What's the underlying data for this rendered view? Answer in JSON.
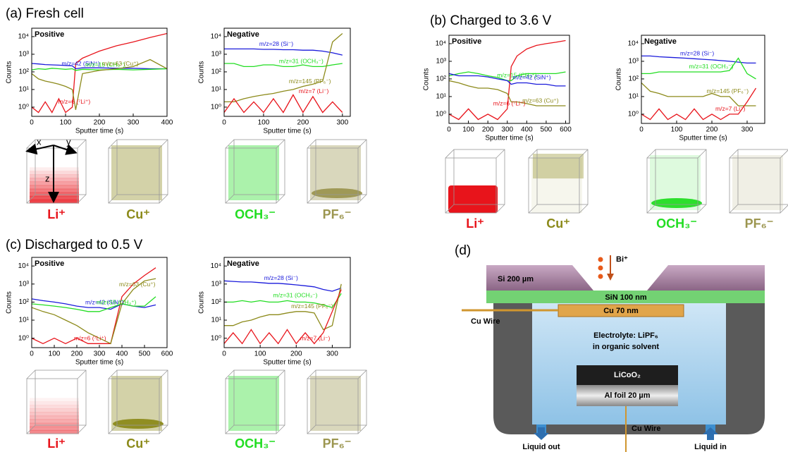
{
  "chart_data": [
    {
      "type": "line",
      "title": "Positive",
      "xlabel": "Sputter time (s)",
      "ylabel": "Counts",
      "log_y": true,
      "x": [
        0,
        20,
        40,
        60,
        80,
        100,
        120,
        130,
        150,
        200,
        250,
        300,
        350,
        400
      ],
      "xlim": [
        0,
        400
      ],
      "xticks": [
        0,
        100,
        200,
        300,
        400
      ],
      "ylim": [
        0.3,
        30000
      ],
      "yticks": [
        {
          "value": 1,
          "label": "10⁰"
        },
        {
          "value": 10,
          "label": "10¹"
        },
        {
          "value": 100,
          "label": "10²"
        },
        {
          "value": 1000,
          "label": "10³"
        },
        {
          "value": 10000,
          "label": "10⁴"
        }
      ],
      "series": [
        {
          "name": "m/z=6 (⁷Li⁺)",
          "color": "#e8141b",
          "values": [
            1,
            0.5,
            2,
            0.5,
            3,
            0.5,
            1,
            300,
            600,
            1500,
            3000,
            5000,
            9000,
            15000
          ]
        },
        {
          "name": "m/z=42 (SiN⁺)",
          "color": "#1a1adb",
          "values": [
            300,
            280,
            260,
            250,
            240,
            230,
            220,
            150,
            170,
            170,
            160,
            160,
            150,
            150
          ]
        },
        {
          "name": "m/z=15 (CH₃⁺)",
          "color": "#22dd22",
          "values": [
            130,
            150,
            140,
            160,
            150,
            140,
            150,
            120,
            140,
            130,
            140,
            130,
            140,
            150
          ]
        },
        {
          "name": "m/z=63 (Cu⁺)",
          "color": "#8c8a1a",
          "values": [
            80,
            40,
            30,
            25,
            20,
            15,
            10,
            0.7,
            80,
            120,
            150,
            200,
            500,
            150
          ]
        }
      ]
    },
    {
      "type": "line",
      "title": "Negative",
      "xlabel": "Sputter time (s)",
      "ylabel": "Counts",
      "log_y": true,
      "x": [
        0,
        25,
        50,
        75,
        100,
        125,
        150,
        175,
        200,
        225,
        250,
        275,
        300
      ],
      "xlim": [
        0,
        320
      ],
      "xticks": [
        0,
        100,
        200,
        300
      ],
      "ylim": [
        0.3,
        30000
      ],
      "yticks": [
        {
          "value": 1,
          "label": "10⁰"
        },
        {
          "value": 10,
          "label": "10¹"
        },
        {
          "value": 100,
          "label": "10²"
        },
        {
          "value": 1000,
          "label": "10³"
        },
        {
          "value": 10000,
          "label": "10⁴"
        }
      ],
      "series": [
        {
          "name": "m/z=28 (Si⁻)",
          "color": "#1a1adb",
          "values": [
            2000,
            2000,
            2000,
            2000,
            1900,
            1900,
            1800,
            1800,
            1700,
            1700,
            1500,
            1200,
            900
          ]
        },
        {
          "name": "m/z=31 (OCH₃⁻)",
          "color": "#22dd22",
          "values": [
            300,
            300,
            200,
            200,
            250,
            250,
            200,
            200,
            250,
            200,
            200,
            250,
            300
          ]
        },
        {
          "name": "m/z=145 (PF₆⁻)",
          "color": "#8c8a1a",
          "values": [
            2,
            2,
            3,
            4,
            5,
            6,
            8,
            10,
            15,
            20,
            30,
            5000,
            15000
          ]
        },
        {
          "name": "m/z=7 (Li⁻)",
          "color": "#e8141b",
          "values": [
            0.5,
            3,
            0.5,
            2,
            0.5,
            3,
            0.5,
            5,
            0.5,
            4,
            0.5,
            2,
            0.5
          ]
        }
      ]
    },
    {
      "type": "line",
      "title": "Positive",
      "xlabel": "Sputter time (s)",
      "ylabel": "Counts",
      "log_y": true,
      "x": [
        0,
        50,
        100,
        150,
        200,
        250,
        300,
        320,
        350,
        400,
        450,
        500,
        550,
        600
      ],
      "xlim": [
        0,
        620
      ],
      "xticks": [
        0,
        100,
        200,
        300,
        400,
        500,
        600
      ],
      "ylim": [
        0.3,
        30000
      ],
      "yticks": [
        {
          "value": 1,
          "label": "10⁰"
        },
        {
          "value": 10,
          "label": "10¹"
        },
        {
          "value": 100,
          "label": "10²"
        },
        {
          "value": 1000,
          "label": "10³"
        },
        {
          "value": 10000,
          "label": "10⁴"
        }
      ],
      "series": [
        {
          "name": "m/z=6 (⁷Li⁺)",
          "color": "#e8141b",
          "values": [
            1,
            0.5,
            2,
            0.5,
            1,
            0.5,
            2,
            500,
            2000,
            5000,
            8000,
            10000,
            12000,
            15000
          ]
        },
        {
          "name": "m/z=15 (CH₃⁺)",
          "color": "#22dd22",
          "values": [
            150,
            200,
            250,
            200,
            150,
            120,
            80,
            80,
            150,
            200,
            200,
            200,
            200,
            250
          ]
        },
        {
          "name": "m/z=42 (SiN⁺)",
          "color": "#1a1adb",
          "values": [
            200,
            150,
            150,
            150,
            130,
            100,
            80,
            50,
            60,
            60,
            50,
            50,
            40,
            40
          ]
        },
        {
          "name": "m/z=63 (Cu⁺)",
          "color": "#8c8a1a",
          "values": [
            80,
            60,
            40,
            30,
            30,
            25,
            15,
            5,
            5,
            4,
            3,
            3,
            3,
            3
          ]
        }
      ]
    },
    {
      "type": "line",
      "title": "Negative",
      "xlabel": "Sputter time (s)",
      "ylabel": "Counts",
      "log_y": true,
      "x": [
        0,
        25,
        50,
        75,
        100,
        125,
        150,
        175,
        200,
        225,
        250,
        275,
        300,
        325
      ],
      "xlim": [
        0,
        350
      ],
      "xticks": [
        0,
        100,
        200,
        300
      ],
      "ylim": [
        0.3,
        30000
      ],
      "yticks": [
        {
          "value": 1,
          "label": "10⁰"
        },
        {
          "value": 10,
          "label": "10¹"
        },
        {
          "value": 100,
          "label": "10²"
        },
        {
          "value": 1000,
          "label": "10³"
        },
        {
          "value": 10000,
          "label": "10⁴"
        }
      ],
      "series": [
        {
          "name": "m/z=28 (Si⁻)",
          "color": "#1a1adb",
          "values": [
            2000,
            2000,
            1800,
            1700,
            1600,
            1500,
            1400,
            1300,
            1200,
            1100,
            1000,
            900,
            800,
            800
          ]
        },
        {
          "name": "m/z=31 (OCH₃⁻)",
          "color": "#22dd22",
          "values": [
            200,
            200,
            250,
            250,
            250,
            250,
            250,
            250,
            250,
            250,
            300,
            1500,
            200,
            100
          ]
        },
        {
          "name": "m/z=145 (PF₆⁻)",
          "color": "#8c8a1a",
          "values": [
            60,
            20,
            15,
            10,
            10,
            10,
            10,
            10,
            15,
            10,
            10,
            3,
            3,
            3
          ]
        },
        {
          "name": "m/z=7 (Li⁻)",
          "color": "#e8141b",
          "values": [
            1,
            0.5,
            2,
            0.5,
            1,
            0.5,
            2,
            0.5,
            1,
            0.5,
            1,
            1,
            5,
            30
          ]
        }
      ]
    },
    {
      "type": "line",
      "title": "Positive",
      "xlabel": "Sputter time (s)",
      "ylabel": "Counts",
      "log_y": true,
      "x": [
        0,
        50,
        100,
        150,
        200,
        250,
        300,
        350,
        400,
        450,
        500,
        550
      ],
      "xlim": [
        0,
        600
      ],
      "xticks": [
        0,
        100,
        200,
        300,
        400,
        500,
        600
      ],
      "ylim": [
        0.3,
        30000
      ],
      "yticks": [
        {
          "value": 1,
          "label": "10⁰"
        },
        {
          "value": 10,
          "label": "10¹"
        },
        {
          "value": 100,
          "label": "10²"
        },
        {
          "value": 1000,
          "label": "10³"
        },
        {
          "value": 10000,
          "label": "10⁴"
        }
      ],
      "series": [
        {
          "name": "m/z=6 (⁷Li⁺)",
          "color": "#e8141b",
          "values": [
            1,
            0.5,
            1,
            0.5,
            1,
            0.5,
            0.5,
            0.5,
            200,
            1000,
            3000,
            8000
          ]
        },
        {
          "name": "m/z=42 (SiN⁺)",
          "color": "#1a1adb",
          "values": [
            150,
            120,
            100,
            80,
            60,
            50,
            50,
            40,
            80,
            60,
            50,
            70
          ]
        },
        {
          "name": "m/z=15 (CH₃⁺)",
          "color": "#22dd22",
          "values": [
            80,
            70,
            60,
            50,
            40,
            30,
            30,
            50,
            80,
            60,
            60,
            200
          ]
        },
        {
          "name": "m/z=63 (Cu⁺)",
          "color": "#8c8a1a",
          "values": [
            50,
            30,
            20,
            10,
            5,
            2,
            1,
            0.5,
            80,
            500,
            1500,
            2000
          ]
        }
      ]
    },
    {
      "type": "line",
      "title": "Negative",
      "xlabel": "Sputter time (s)",
      "ylabel": "Counts",
      "log_y": true,
      "x": [
        0,
        25,
        50,
        75,
        100,
        125,
        150,
        175,
        200,
        225,
        250,
        275,
        300,
        325
      ],
      "xlim": [
        0,
        350
      ],
      "xticks": [
        0,
        100,
        200,
        300
      ],
      "ylim": [
        0.3,
        30000
      ],
      "yticks": [
        {
          "value": 1,
          "label": "10⁰"
        },
        {
          "value": 10,
          "label": "10¹"
        },
        {
          "value": 100,
          "label": "10²"
        },
        {
          "value": 1000,
          "label": "10³"
        },
        {
          "value": 10000,
          "label": "10⁴"
        }
      ],
      "series": [
        {
          "name": "m/z=28 (Si⁻)",
          "color": "#1a1adb",
          "values": [
            1500,
            1400,
            1300,
            1300,
            1200,
            1100,
            1100,
            1000,
            900,
            800,
            700,
            500,
            400,
            600
          ]
        },
        {
          "name": "m/z=31 (OCH₃⁻)",
          "color": "#22dd22",
          "values": [
            100,
            100,
            120,
            100,
            120,
            100,
            100,
            120,
            100,
            100,
            90,
            70,
            50,
            300
          ]
        },
        {
          "name": "m/z=145 (PF₆⁻)",
          "color": "#8c8a1a",
          "values": [
            5,
            5,
            8,
            10,
            15,
            20,
            20,
            25,
            30,
            30,
            25,
            3,
            5,
            1000
          ]
        },
        {
          "name": "m/z=7 (Li⁻)",
          "color": "#e8141b",
          "values": [
            0.5,
            2,
            0.5,
            3,
            0.5,
            2,
            0.5,
            3,
            0.5,
            2,
            0.5,
            2,
            30,
            500
          ]
        }
      ]
    }
  ],
  "panels": [
    {
      "title": "(a) Fresh cell",
      "axes": [
        "x",
        "y",
        "z"
      ],
      "cubes": [
        {
          "label": "Li⁺",
          "color": "#e8141b"
        },
        {
          "label": "Cu⁺",
          "color": "#8c8a1a"
        },
        {
          "label": "OCH₃⁻",
          "color": "#22dd22"
        },
        {
          "label": "PF₆⁻",
          "color": "#9c9650"
        }
      ]
    },
    {
      "title": "(b) Charged to 3.6 V",
      "cubes": [
        {
          "label": "Li⁺",
          "color": "#e8141b"
        },
        {
          "label": "Cu⁺",
          "color": "#8c8a1a"
        },
        {
          "label": "OCH₃⁻",
          "color": "#22dd22"
        },
        {
          "label": "PF₆⁻",
          "color": "#9c9650"
        }
      ]
    },
    {
      "title": "(c) Discharged to 0.5 V",
      "cubes": [
        {
          "label": "Li⁺",
          "color": "#e8141b"
        },
        {
          "label": "Cu⁺",
          "color": "#8c8a1a"
        },
        {
          "label": "OCH₃⁻",
          "color": "#22dd22"
        },
        {
          "label": "PF₆⁻",
          "color": "#9c9650"
        }
      ]
    }
  ],
  "diagram": {
    "title": "(d)",
    "beam": "Bi⁺",
    "si": "Si 200 µm",
    "sin": "SiN 100 nm",
    "cu": "Cu 70 nm",
    "wire_top": "Cu Wire",
    "electrolyte": [
      "Electrolyte: LiPF₆",
      "in organic solvent"
    ],
    "cathode": "LiCoO₂",
    "foil": "Al foil 20 µm",
    "wire_bottom": "Cu Wire",
    "out": "Liquid out",
    "in": "Liquid in"
  }
}
